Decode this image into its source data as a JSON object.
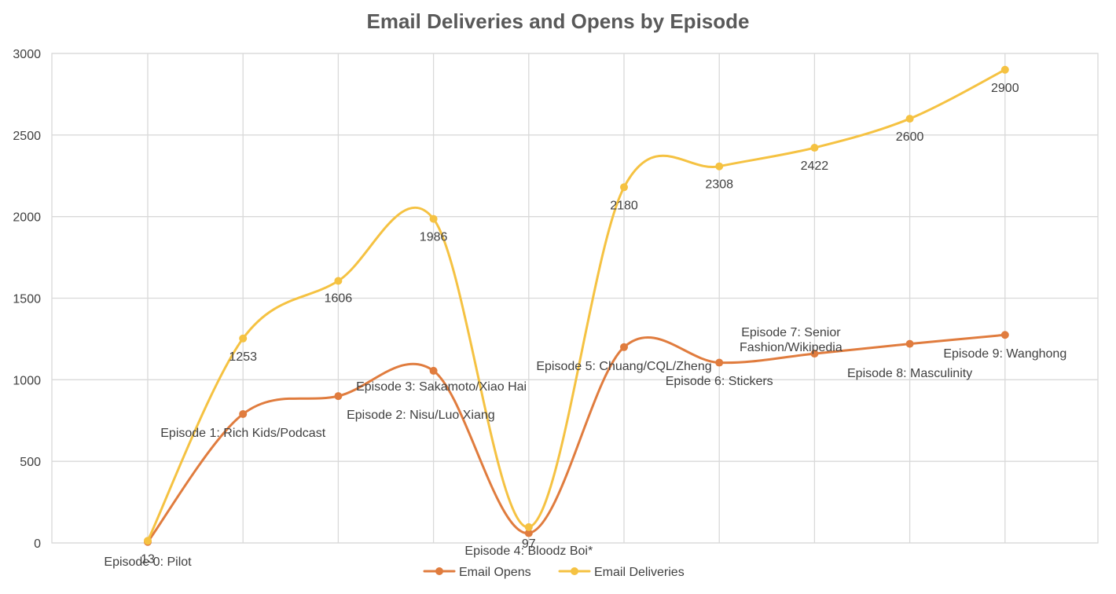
{
  "chart_data": {
    "type": "line",
    "title": "Email Deliveries and Opens by Episode",
    "xlabel": "",
    "ylabel": "",
    "ylim": [
      0,
      3000
    ],
    "yticks": [
      "0",
      "500",
      "1000",
      "1500",
      "2000",
      "2500",
      "3000"
    ],
    "grid": true,
    "legend_position": "bottom",
    "smooth": true,
    "x": [
      "Episode 0: Pilot",
      "Episode 1: Rich Kids/Podcast",
      "Episode 2: Nisu/Luo Xiang",
      "Episode 3: Sakamoto/Xiao Hai",
      "Episode 4: Bloodz Boi*",
      "Episode 5: Chuang/CQL/Zheng",
      "Episode 6: Stickers",
      "Episode 7: Senior Fashion/Wikipedia",
      "Episode 8: Masculinity",
      "Episode 9: Wanghong"
    ],
    "series": [
      {
        "name": "Email Opens",
        "color": "#e07c3e",
        "values": [
          6,
          790,
          900,
          1055,
          60,
          1200,
          1105,
          1160,
          1220,
          1275
        ]
      },
      {
        "name": "Email Deliveries",
        "color": "#f5c242",
        "values": [
          13,
          1253,
          1606,
          1986,
          97,
          2180,
          2308,
          2422,
          2600,
          2900
        ],
        "data_labels": [
          "13",
          "1253",
          "1606",
          "1986",
          "97",
          "2180",
          "2308",
          "2422",
          "2600",
          "2900"
        ]
      }
    ]
  }
}
